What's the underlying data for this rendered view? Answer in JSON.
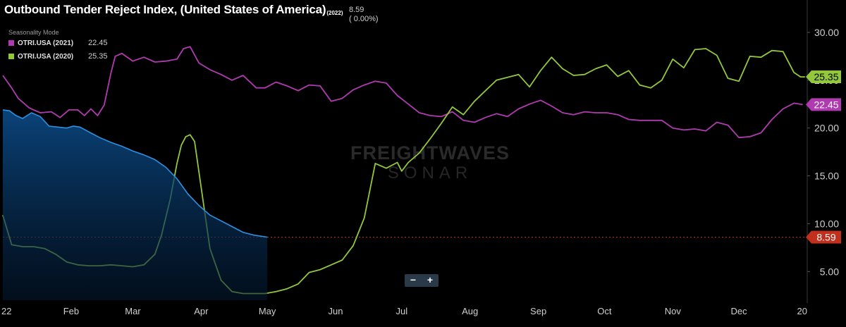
{
  "header": {
    "title": "Outbound Tender Reject Index, (United States of America)",
    "title_suffix": "(2022)",
    "current_value": "8.59",
    "current_change": "( 0.00%)",
    "seasonality_label": "Seasonality Mode"
  },
  "legend": [
    {
      "name": "OTRI.USA (2021)",
      "value": "22.45",
      "color": "#b03bb0"
    },
    {
      "name": "OTRI.USA (2020)",
      "value": "25.35",
      "color": "#93c83c"
    }
  ],
  "zoom": {
    "minus": "−",
    "plus": "+"
  },
  "watermark": {
    "line1": "FREIGHTWAVES",
    "line2": "SONAR"
  },
  "chart_data": {
    "type": "line",
    "x_unit": "day of year",
    "xlim": [
      1,
      366
    ],
    "ylim": [
      2,
      32.5
    ],
    "y_ticks": [
      5,
      10,
      15,
      20,
      25,
      30
    ],
    "y_tick_labels": [
      "5.00",
      "10.00",
      "15.00",
      "20.00",
      "25.00",
      "30.00"
    ],
    "x_ticks": [
      1,
      32,
      60,
      91,
      121,
      152,
      182,
      213,
      244,
      274,
      305,
      335,
      366
    ],
    "x_tick_labels": [
      "22",
      "Feb",
      "Mar",
      "Apr",
      "May",
      "Jun",
      "Jul",
      "Aug",
      "Sep",
      "Oct",
      "Nov",
      "Dec",
      "20"
    ],
    "reference_line": {
      "value": 8.59,
      "label": "8.59",
      "color": "#c0301d"
    },
    "series": [
      {
        "name": "OTRI.USA (2021)",
        "color": "#b03bb0",
        "end_label": "22.45",
        "style": "line",
        "x": [
          1,
          5,
          8,
          13,
          18,
          23,
          27,
          31,
          35,
          38,
          41,
          44,
          47,
          50,
          52,
          55,
          60,
          65,
          70,
          75,
          80,
          83,
          86,
          90,
          95,
          100,
          105,
          110,
          116,
          120,
          125,
          130,
          135,
          140,
          145,
          150,
          155,
          160,
          165,
          170,
          175,
          180,
          185,
          190,
          195,
          200,
          205,
          210,
          215,
          220,
          225,
          230,
          235,
          240,
          245,
          250,
          255,
          260,
          265,
          270,
          275,
          280,
          285,
          290,
          295,
          300,
          305,
          310,
          315,
          320,
          325,
          330,
          335,
          340,
          345,
          350,
          355,
          360,
          364
        ],
        "y": [
          25.5,
          24.2,
          23.1,
          22.1,
          21.6,
          21.7,
          21.1,
          21.9,
          21.9,
          21.3,
          22.0,
          21.3,
          22.4,
          25.7,
          27.5,
          27.8,
          27.0,
          27.4,
          26.9,
          27.0,
          27.2,
          28.3,
          28.5,
          26.8,
          26.1,
          25.6,
          25.0,
          25.5,
          24.2,
          24.2,
          24.8,
          24.4,
          23.9,
          24.5,
          24.4,
          22.8,
          23.1,
          24.0,
          24.5,
          24.9,
          24.7,
          23.4,
          22.5,
          21.6,
          21.3,
          21.2,
          21.7,
          20.8,
          20.6,
          21.1,
          21.5,
          21.2,
          22.0,
          22.5,
          22.9,
          22.3,
          21.6,
          21.4,
          21.7,
          21.6,
          21.6,
          21.4,
          20.9,
          20.8,
          20.8,
          20.8,
          20.0,
          19.8,
          19.9,
          19.7,
          20.6,
          20.3,
          19.0,
          19.1,
          19.5,
          20.9,
          22.0,
          22.6,
          22.45
        ]
      },
      {
        "name": "OTRI.USA (2020)",
        "color": "#93c83c",
        "end_label": "25.35",
        "style": "line",
        "x": [
          1,
          5,
          10,
          15,
          20,
          25,
          30,
          35,
          40,
          45,
          50,
          55,
          60,
          65,
          70,
          73,
          77,
          80,
          82,
          84,
          86,
          88,
          90,
          95,
          100,
          105,
          110,
          115,
          120,
          125,
          130,
          135,
          140,
          145,
          150,
          155,
          160,
          165,
          170,
          175,
          180,
          182,
          185,
          190,
          195,
          200,
          205,
          210,
          215,
          220,
          225,
          230,
          235,
          240,
          245,
          250,
          255,
          260,
          265,
          270,
          275,
          280,
          285,
          290,
          295,
          300,
          305,
          310,
          315,
          320,
          325,
          330,
          335,
          340,
          345,
          350,
          355,
          360,
          363,
          365
        ],
        "y": [
          10.9,
          7.8,
          7.6,
          7.6,
          7.4,
          6.8,
          6.0,
          5.7,
          5.6,
          5.6,
          5.7,
          5.6,
          5.5,
          5.7,
          6.8,
          8.8,
          12.6,
          16.3,
          18.2,
          19.1,
          19.3,
          18.6,
          15.4,
          7.4,
          4.1,
          2.9,
          2.7,
          2.7,
          2.7,
          2.9,
          3.2,
          3.7,
          4.9,
          5.2,
          5.7,
          6.2,
          7.7,
          10.6,
          16.3,
          15.8,
          16.4,
          15.5,
          16.4,
          17.4,
          18.9,
          20.5,
          22.2,
          21.4,
          22.8,
          23.9,
          25.0,
          25.3,
          25.6,
          24.3,
          26.0,
          27.4,
          26.2,
          25.5,
          25.6,
          26.2,
          26.6,
          25.4,
          26.0,
          24.5,
          24.2,
          25.0,
          27.2,
          26.3,
          28.2,
          28.3,
          27.6,
          25.2,
          24.9,
          27.5,
          27.4,
          28.1,
          28.0,
          25.8,
          25.35,
          25.35
        ]
      },
      {
        "name": "OTRI.USA (2022)",
        "color": "#2f8fe0",
        "end_label": "8.59",
        "style": "area",
        "x": [
          1,
          4,
          7,
          10,
          14,
          18,
          22,
          26,
          30,
          33,
          36,
          40,
          45,
          50,
          55,
          60,
          65,
          70,
          75,
          80,
          85,
          90,
          95,
          100,
          105,
          110,
          115,
          118,
          121
        ],
        "y": [
          21.9,
          21.8,
          21.3,
          21.0,
          21.6,
          21.2,
          20.2,
          20.1,
          20.0,
          20.2,
          20.1,
          19.6,
          19.0,
          18.5,
          18.1,
          17.6,
          17.2,
          16.7,
          15.9,
          14.7,
          13.1,
          11.9,
          10.9,
          10.3,
          9.7,
          9.1,
          8.8,
          8.7,
          8.59
        ]
      }
    ]
  }
}
